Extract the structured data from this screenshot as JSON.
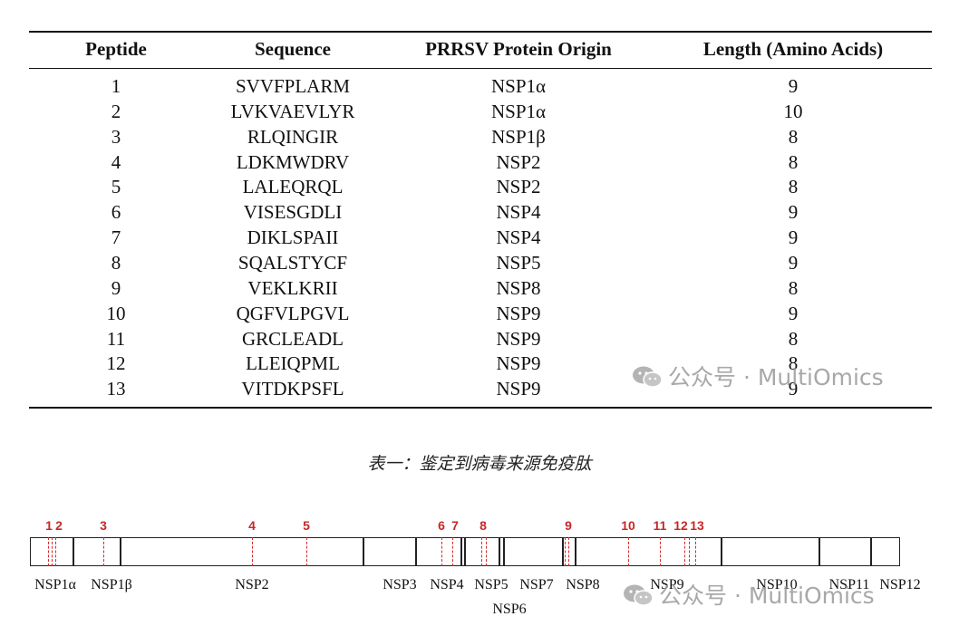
{
  "table": {
    "headers": [
      "Peptide",
      "Sequence",
      "PRRSV Protein Origin",
      "Length (Amino Acids)"
    ],
    "rows": [
      [
        "1",
        "SVVFPLARM",
        "NSP1α",
        "9"
      ],
      [
        "2",
        "LVKVAEVLYR",
        "NSP1α",
        "10"
      ],
      [
        "3",
        "RLQINGIR",
        "NSP1β",
        "8"
      ],
      [
        "4",
        "LDKMWDRV",
        "NSP2",
        "8"
      ],
      [
        "5",
        "LALEQRQL",
        "NSP2",
        "8"
      ],
      [
        "6",
        "VISESGDLI",
        "NSP4",
        "9"
      ],
      [
        "7",
        "DIKLSPAII",
        "NSP4",
        "9"
      ],
      [
        "8",
        "SQALSTYCF",
        "NSP5",
        "9"
      ],
      [
        "9",
        "VEKLKRII",
        "NSP8",
        "8"
      ],
      [
        "10",
        "QGFVLPGVL",
        "NSP9",
        "9"
      ],
      [
        "11",
        "GRCLEADL",
        "NSP9",
        "8"
      ],
      [
        "12",
        "LLEIQPML",
        "NSP9",
        "8"
      ],
      [
        "13",
        "VITDKPSFL",
        "NSP9",
        "9"
      ]
    ]
  },
  "caption": "表一：鉴定到病毒来源免疫肽",
  "watermark": "公众号 · MultiOmics",
  "map": {
    "segments": [
      "NSP1α",
      "NSP1β",
      "NSP2",
      "NSP3",
      "NSP4",
      "NSP5",
      "NSP6",
      "NSP7",
      "NSP8",
      "NSP9",
      "NSP10",
      "NSP11",
      "NSP12"
    ],
    "peptide_labels": [
      "1",
      "2",
      "3",
      "4",
      "5",
      "6",
      "7",
      "8",
      "9",
      "10",
      "11",
      "12",
      "13"
    ]
  },
  "colors": {
    "peptide_marker": "#c62828",
    "text": "#111111",
    "watermark": "#9a9a9a"
  }
}
